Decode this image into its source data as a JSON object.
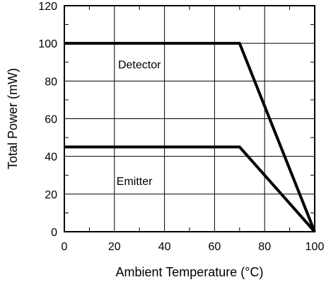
{
  "chart_data": {
    "type": "line",
    "title": "",
    "xlabel": "Ambient Temperature (°C)",
    "ylabel": "Total Power (mW)",
    "xlim": [
      0,
      100
    ],
    "ylim": [
      0,
      120
    ],
    "x_ticks": [
      0,
      20,
      40,
      60,
      80,
      100
    ],
    "y_ticks": [
      0,
      20,
      40,
      60,
      80,
      100,
      120
    ],
    "x_tick_labels": [
      "0",
      "20",
      "40",
      "60",
      "80",
      "100"
    ],
    "y_tick_labels": [
      "0",
      "20",
      "40",
      "60",
      "80",
      "100",
      "120"
    ],
    "grid": true,
    "series": [
      {
        "name": "Detector",
        "x": [
          0,
          70,
          100
        ],
        "y": [
          100,
          100,
          0
        ]
      },
      {
        "name": "Emitter",
        "x": [
          0,
          70,
          100
        ],
        "y": [
          45,
          45,
          0
        ]
      }
    ],
    "annotations": [
      {
        "text": "Detector",
        "x": 30,
        "y": 89
      },
      {
        "text": "Emitter",
        "x": 28,
        "y": 27
      }
    ]
  }
}
